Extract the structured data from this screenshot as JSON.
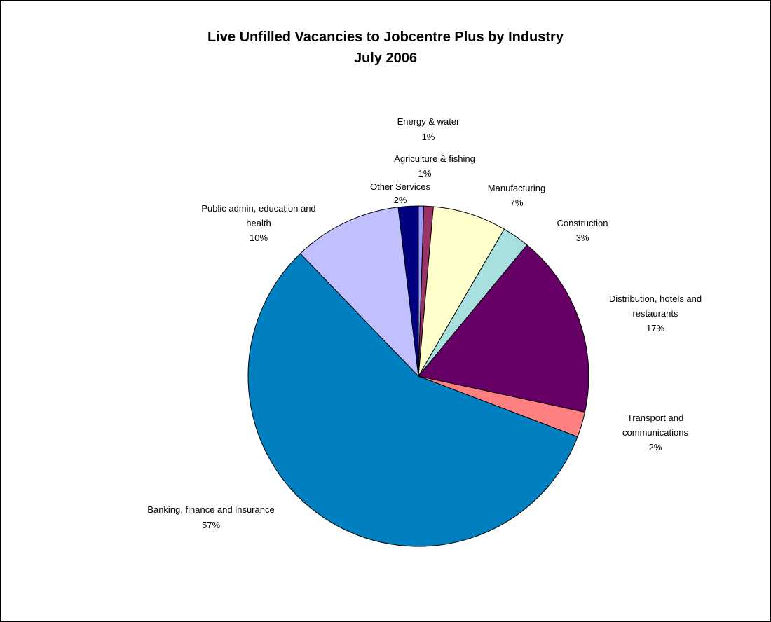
{
  "chart_data": {
    "type": "pie",
    "title": "Live Unfilled Vacancies to Jobcentre Plus by Industry",
    "subtitle": "July 2006",
    "slices": [
      {
        "name": "Energy & water",
        "value": 0.5,
        "label": "1%",
        "color": "#9999FF"
      },
      {
        "name": "Agriculture & fishing",
        "value": 0.9,
        "label": "1%",
        "color": "#993366"
      },
      {
        "name": "Manufacturing",
        "value": 7,
        "label": "7%",
        "color": "#FFFFCC"
      },
      {
        "name": "Construction",
        "value": 2.6,
        "label": "3%",
        "color": "#A8E0E0"
      },
      {
        "name": "Distribution, hotels and restaurants",
        "value": 17.4,
        "label": "17%",
        "color": "#660066"
      },
      {
        "name": "Transport and communications",
        "value": 2.4,
        "label": "2%",
        "color": "#FF8080"
      },
      {
        "name": "Banking, finance and insurance",
        "value": 57,
        "label": "57%",
        "color": "#0080C0"
      },
      {
        "name": "Public admin, education and health",
        "value": 10.3,
        "label": "10%",
        "color": "#C0C0FF"
      },
      {
        "name": "Other Services",
        "value": 1.9,
        "label": "2%",
        "color": "#000080"
      }
    ]
  }
}
